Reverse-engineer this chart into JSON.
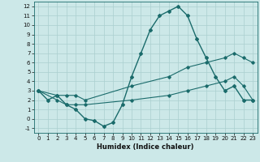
{
  "xlabel": "Humidex (Indice chaleur)",
  "bg_color": "#cce8e8",
  "line_color": "#1a6b6b",
  "grid_color": "#aacfcf",
  "xlim": [
    -0.5,
    23.5
  ],
  "ylim": [
    -1.5,
    12.5
  ],
  "xticks": [
    0,
    1,
    2,
    3,
    4,
    5,
    6,
    7,
    8,
    9,
    10,
    11,
    12,
    13,
    14,
    15,
    16,
    17,
    18,
    19,
    20,
    21,
    22,
    23
  ],
  "yticks": [
    -1,
    0,
    1,
    2,
    3,
    4,
    5,
    6,
    7,
    8,
    9,
    10,
    11,
    12
  ],
  "line1_x": [
    0,
    1,
    2,
    3,
    4,
    5,
    6,
    7,
    8,
    9,
    10,
    11,
    12,
    13,
    14,
    15,
    16,
    17,
    18,
    19,
    20,
    21,
    22,
    23
  ],
  "line1_y": [
    3.0,
    2.0,
    2.5,
    1.5,
    1.0,
    0.0,
    -0.2,
    -0.8,
    -0.4,
    1.5,
    4.5,
    7.0,
    9.5,
    11.0,
    11.5,
    12.0,
    11.0,
    8.5,
    6.5,
    4.5,
    3.0,
    3.5,
    2.0,
    2.0
  ],
  "line2_x": [
    0,
    2,
    3,
    4,
    5,
    10,
    14,
    16,
    18,
    20,
    21,
    22,
    23
  ],
  "line2_y": [
    3.0,
    2.5,
    2.5,
    2.5,
    2.0,
    3.5,
    4.5,
    5.5,
    6.0,
    6.5,
    7.0,
    6.5,
    6.0
  ],
  "line3_x": [
    0,
    2,
    3,
    4,
    5,
    10,
    14,
    16,
    18,
    20,
    21,
    22,
    23
  ],
  "line3_y": [
    3.0,
    2.0,
    1.5,
    1.5,
    1.5,
    2.0,
    2.5,
    3.0,
    3.5,
    4.0,
    4.5,
    3.5,
    2.0
  ]
}
